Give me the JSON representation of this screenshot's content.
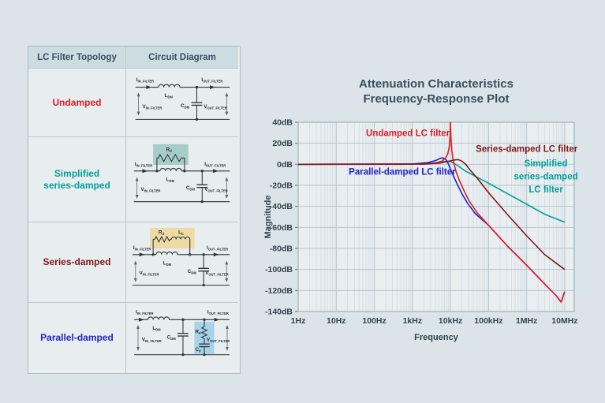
{
  "table": {
    "headers": [
      "LC Filter Topology",
      "Circuit Diagram"
    ],
    "rows": [
      {
        "label": "Undamped",
        "color": "#e31b23"
      },
      {
        "label": "Simplified\nseries-damped",
        "color": "#00a09a"
      },
      {
        "label": "Series-damped",
        "color": "#801818"
      },
      {
        "label": "Parallel-damped",
        "color": "#2023c8"
      }
    ]
  },
  "circuit": {
    "I": "I",
    "V": "V",
    "L": "L",
    "C": "C",
    "R": "R",
    "sub_in": "IN_FILTER",
    "sub_out": "OUT_FILTER",
    "sub_dm": "DM",
    "sub_d": "d",
    "sub_b": "b"
  },
  "chart": {
    "title_line1": "Attenuation Characteristics",
    "title_line2": "Frequency-Response Plot"
  },
  "chart_data": {
    "type": "line",
    "title": "Attenuation Characteristics Frequency-Response Plot",
    "xlabel": "Frequency",
    "ylabel": "Magnitude",
    "x_scale": "log",
    "x_range_hz": [
      1,
      10000000
    ],
    "y_range_db": [
      -140,
      40
    ],
    "grid": true,
    "x_ticks": [
      {
        "hz": 1,
        "label": "1Hz"
      },
      {
        "hz": 10,
        "label": "10Hz"
      },
      {
        "hz": 100,
        "label": "100Hz"
      },
      {
        "hz": 1000,
        "label": "1kHz"
      },
      {
        "hz": 10000,
        "label": "10kHz"
      },
      {
        "hz": 100000,
        "label": "100kHz"
      },
      {
        "hz": 1000000,
        "label": "1MHz"
      },
      {
        "hz": 10000000,
        "label": "10MHz"
      }
    ],
    "y_ticks": [
      {
        "db": 40,
        "label": "40dB"
      },
      {
        "db": 20,
        "label": "20dB"
      },
      {
        "db": 0,
        "label": "0dB"
      },
      {
        "db": -20,
        "label": "-20dB"
      },
      {
        "db": -40,
        "label": "-40dB"
      },
      {
        "db": -60,
        "label": "-60dB"
      },
      {
        "db": -80,
        "label": "-80dB"
      },
      {
        "db": -100,
        "label": "-100dB"
      },
      {
        "db": -120,
        "label": "-120dB"
      },
      {
        "db": -140,
        "label": "-140dB"
      }
    ],
    "series": [
      {
        "name": "Simplified series-damped LC filter",
        "color": "#00a09a",
        "points": [
          [
            1,
            0
          ],
          [
            1500,
            0.2
          ],
          [
            3500,
            1
          ],
          [
            6000,
            2.2
          ],
          [
            8000,
            3
          ],
          [
            10000,
            2.6
          ],
          [
            13000,
            0.5
          ],
          [
            18000,
            -3
          ],
          [
            25000,
            -6.5
          ],
          [
            40000,
            -10.5
          ],
          [
            100000,
            -18
          ],
          [
            300000,
            -27.5
          ],
          [
            1000000,
            -38
          ],
          [
            3000000,
            -47.5
          ],
          [
            10000000,
            -55
          ]
        ]
      },
      {
        "name": "Parallel-damped LC filter",
        "color": "#2023c8",
        "points": [
          [
            1,
            0
          ],
          [
            1000,
            0.3
          ],
          [
            2500,
            1.5
          ],
          [
            4000,
            3.5
          ],
          [
            5500,
            5.8
          ],
          [
            6500,
            6
          ],
          [
            7500,
            4.5
          ],
          [
            8500,
            1.5
          ],
          [
            9500,
            -2.5
          ],
          [
            11000,
            -8
          ],
          [
            13000,
            -14
          ],
          [
            16000,
            -21
          ],
          [
            20000,
            -28
          ],
          [
            28000,
            -37
          ],
          [
            45000,
            -47
          ],
          [
            70000,
            -53
          ],
          [
            100000,
            -58
          ],
          [
            300000,
            -77
          ],
          [
            1000000,
            -96
          ],
          [
            3000000,
            -114
          ],
          [
            6000000,
            -125
          ],
          [
            8000000,
            -131
          ],
          [
            9000000,
            -126
          ],
          [
            10000000,
            -121
          ]
        ]
      },
      {
        "name": "Undamped LC filter",
        "color": "#e31b23",
        "points": [
          [
            1,
            0
          ],
          [
            500,
            0
          ],
          [
            2000,
            0.3
          ],
          [
            4000,
            1.2
          ],
          [
            6000,
            3
          ],
          [
            7500,
            6
          ],
          [
            8500,
            10
          ],
          [
            9300,
            17
          ],
          [
            9800,
            28
          ],
          [
            10000,
            40
          ],
          [
            10200,
            28
          ],
          [
            10800,
            14
          ],
          [
            11500,
            6
          ],
          [
            12500,
            0
          ],
          [
            14000,
            -7
          ],
          [
            17000,
            -15
          ],
          [
            22000,
            -24
          ],
          [
            30000,
            -34
          ],
          [
            50000,
            -46
          ],
          [
            100000,
            -58
          ],
          [
            300000,
            -77
          ],
          [
            1000000,
            -96
          ],
          [
            3000000,
            -114
          ],
          [
            6000000,
            -125
          ],
          [
            8000000,
            -131
          ],
          [
            9000000,
            -126
          ],
          [
            10000000,
            -121
          ]
        ]
      },
      {
        "name": "Series-damped LC filter",
        "color": "#801818",
        "points": [
          [
            1,
            0
          ],
          [
            2000,
            0.2
          ],
          [
            5000,
            1
          ],
          [
            8000,
            2.5
          ],
          [
            12000,
            4
          ],
          [
            16000,
            4.5
          ],
          [
            20000,
            3
          ],
          [
            25000,
            0
          ],
          [
            32000,
            -5
          ],
          [
            50000,
            -13
          ],
          [
            100000,
            -27
          ],
          [
            300000,
            -47
          ],
          [
            1000000,
            -68
          ],
          [
            3000000,
            -86
          ],
          [
            10000000,
            -100
          ]
        ]
      }
    ],
    "annotations": [
      {
        "lines": [
          "Undamped LC filter"
        ],
        "f_hz": 760,
        "db": 27,
        "color": "#e31b23"
      },
      {
        "lines": [
          "Series-damped LC filter"
        ],
        "f_hz": 1000000,
        "db": 12,
        "color": "#801818"
      },
      {
        "lines": [
          "Parallel-damped LC filter"
        ],
        "f_hz": 540,
        "db": -10,
        "color": "#2023c8"
      },
      {
        "lines": [
          "Simplified",
          "series-damped",
          "LC filter"
        ],
        "f_hz": 3200000,
        "db": -2,
        "color": "#00a09a"
      }
    ],
    "legend_position": "inline-labels"
  }
}
